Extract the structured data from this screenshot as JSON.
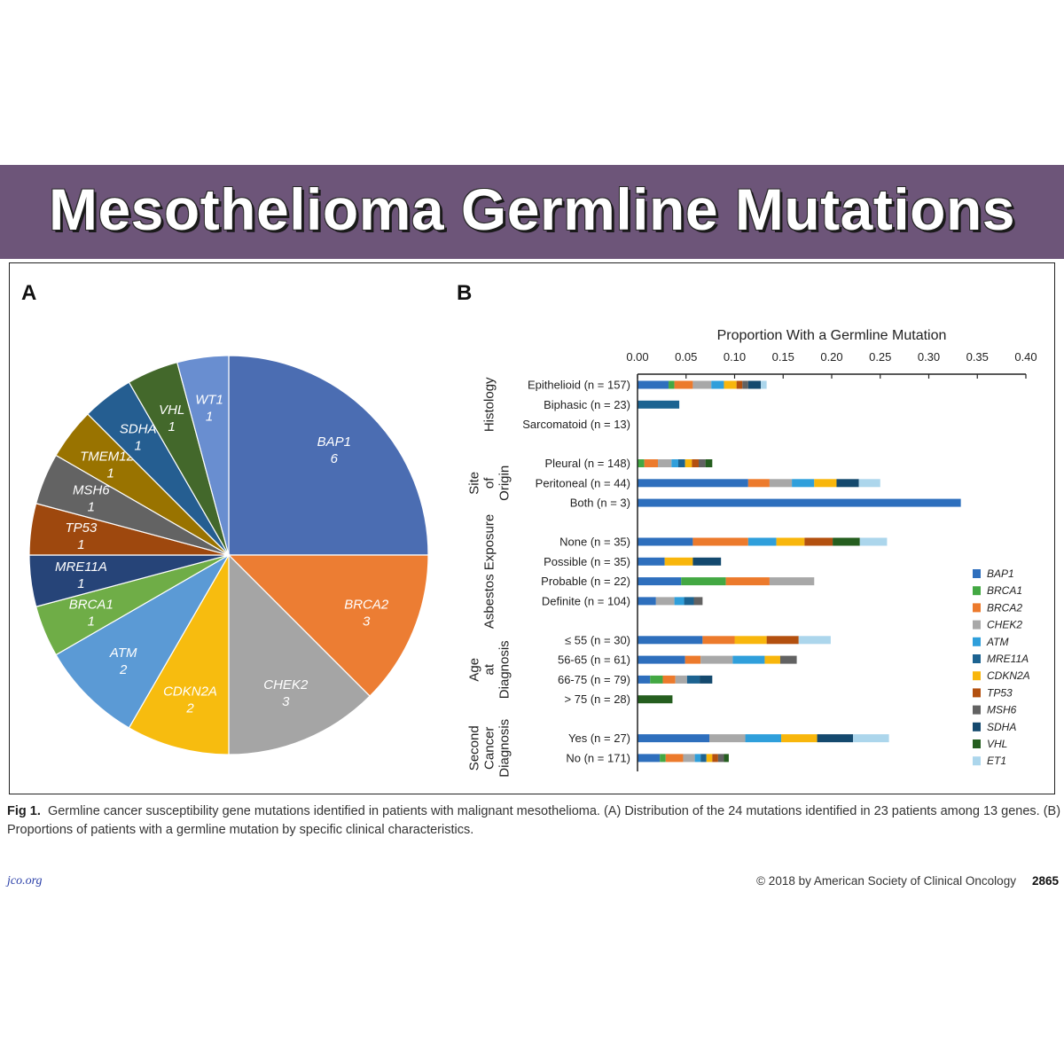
{
  "banner": {
    "title": "Mesothelioma Germline Mutations"
  },
  "panels": {
    "a": "A",
    "b": "B"
  },
  "caption": {
    "label": "Fig 1.",
    "text": "Germline cancer susceptibility gene mutations identified in patients with malignant mesothelioma. (A) Distribution of the 24 mutations identified in 23 patients among 13 genes. (B) Proportions of patients with a germline mutation by specific clinical characteristics."
  },
  "footer": {
    "site": "jco.org",
    "copyright": "© 2018 by American Society of Clinical Oncology",
    "page": "2865"
  },
  "colors": {
    "BAP1": "#2e6fbd",
    "BRCA1": "#43a843",
    "BRCA2": "#ec7a2c",
    "CHEK2": "#a8a8a8",
    "ATM": "#2f9fdb",
    "MRE11A": "#1c6391",
    "CDKN2A": "#f8b60c",
    "TP53": "#b3500f",
    "MSH6": "#626262",
    "SDHA": "#14496e",
    "VHL": "#255e1f",
    "ET1": "#acd6ec"
  },
  "chart_data": [
    {
      "type": "pie",
      "slices": [
        {
          "label": "BAP1",
          "value": 6,
          "color": "#4b6db2"
        },
        {
          "label": "BRCA2",
          "value": 3,
          "color": "#ec7d33"
        },
        {
          "label": "CHEK2",
          "value": 3,
          "color": "#a5a5a5"
        },
        {
          "label": "CDKN2A",
          "value": 2,
          "color": "#f7bc0f"
        },
        {
          "label": "ATM",
          "value": 2,
          "color": "#5b9ad5"
        },
        {
          "label": "BRCA1",
          "value": 1,
          "color": "#6fad47"
        },
        {
          "label": "MRE11A",
          "value": 1,
          "color": "#264478"
        },
        {
          "label": "TP53",
          "value": 1,
          "color": "#9e480e"
        },
        {
          "label": "MSH6",
          "value": 1,
          "color": "#636363"
        },
        {
          "label": "TMEM127",
          "value": 1,
          "color": "#997300"
        },
        {
          "label": "SDHA",
          "value": 1,
          "color": "#255e91"
        },
        {
          "label": "VHL",
          "value": 1,
          "color": "#43682b"
        },
        {
          "label": "WT1",
          "value": 1,
          "color": "#698ed0"
        }
      ]
    },
    {
      "type": "bar",
      "stacked": true,
      "orientation": "horizontal",
      "xlabel": "Proportion With a Germline Mutation",
      "xlim": [
        0,
        0.4
      ],
      "xticks": [
        "0.00",
        "0.05",
        "0.10",
        "0.15",
        "0.20",
        "0.25",
        "0.30",
        "0.35",
        "0.40"
      ],
      "genes": [
        "BAP1",
        "BRCA1",
        "BRCA2",
        "CHEK2",
        "ATM",
        "MRE11A",
        "CDKN2A",
        "TP53",
        "MSH6",
        "SDHA",
        "VHL",
        "ET1"
      ],
      "groups": [
        {
          "label": "Histology",
          "rows": [
            {
              "label": "Epithelioid (n = 157)",
              "segments": [
                [
                  "BAP1",
                  0.032
                ],
                [
                  "BRCA1",
                  0.006
                ],
                [
                  "BRCA2",
                  0.019
                ],
                [
                  "CHEK2",
                  0.019
                ],
                [
                  "ATM",
                  0.013
                ],
                [
                  "CDKN2A",
                  0.013
                ],
                [
                  "TP53",
                  0.006
                ],
                [
                  "MSH6",
                  0.006
                ],
                [
                  "SDHA",
                  0.013
                ],
                [
                  "ET1",
                  0.006
                ]
              ]
            },
            {
              "label": "Biphasic (n = 23)",
              "segments": [
                [
                  "MRE11A",
                  0.043
                ]
              ]
            },
            {
              "label": "Sarcomatoid (n = 13)",
              "segments": []
            }
          ]
        },
        {
          "label": "Site of Origin",
          "rows": [
            {
              "label": "Pleural (n = 148)",
              "segments": [
                [
                  "BRCA1",
                  0.007
                ],
                [
                  "BRCA2",
                  0.014
                ],
                [
                  "CHEK2",
                  0.014
                ],
                [
                  "ATM",
                  0.007
                ],
                [
                  "MRE11A",
                  0.007
                ],
                [
                  "CDKN2A",
                  0.007
                ],
                [
                  "TP53",
                  0.007
                ],
                [
                  "MSH6",
                  0.007
                ],
                [
                  "VHL",
                  0.007
                ]
              ]
            },
            {
              "label": "Peritoneal (n = 44)",
              "segments": [
                [
                  "BAP1",
                  0.114
                ],
                [
                  "BRCA2",
                  0.022
                ],
                [
                  "CHEK2",
                  0.023
                ],
                [
                  "ATM",
                  0.023
                ],
                [
                  "CDKN2A",
                  0.023
                ],
                [
                  "SDHA",
                  0.023
                ],
                [
                  "ET1",
                  0.022
                ]
              ]
            },
            {
              "label": "Both (n = 3)",
              "segments": [
                [
                  "BAP1",
                  0.333
                ]
              ]
            }
          ]
        },
        {
          "label": "Asbestos Exposure",
          "rows": [
            {
              "label": "None (n = 35)",
              "segments": [
                [
                  "BAP1",
                  0.057
                ],
                [
                  "BRCA2",
                  0.057
                ],
                [
                  "ATM",
                  0.029
                ],
                [
                  "CDKN2A",
                  0.029
                ],
                [
                  "TP53",
                  0.029
                ],
                [
                  "VHL",
                  0.028
                ],
                [
                  "ET1",
                  0.028
                ]
              ]
            },
            {
              "label": "Possible (n = 35)",
              "segments": [
                [
                  "BAP1",
                  0.028
                ],
                [
                  "CDKN2A",
                  0.029
                ],
                [
                  "SDHA",
                  0.029
                ]
              ]
            },
            {
              "label": "Probable (n = 22)",
              "segments": [
                [
                  "BAP1",
                  0.045
                ],
                [
                  "BRCA1",
                  0.046
                ],
                [
                  "BRCA2",
                  0.045
                ],
                [
                  "CHEK2",
                  0.046
                ]
              ]
            },
            {
              "label": "Definite (n = 104)",
              "segments": [
                [
                  "BAP1",
                  0.019
                ],
                [
                  "CHEK2",
                  0.019
                ],
                [
                  "ATM",
                  0.01
                ],
                [
                  "MRE11A",
                  0.01
                ],
                [
                  "MSH6",
                  0.009
                ]
              ]
            }
          ]
        },
        {
          "label": "Age at Diagnosis",
          "rows": [
            {
              "label": "≤ 55 (n = 30)",
              "segments": [
                [
                  "BAP1",
                  0.067
                ],
                [
                  "BRCA2",
                  0.033
                ],
                [
                  "CDKN2A",
                  0.033
                ],
                [
                  "TP53",
                  0.033
                ],
                [
                  "ET1",
                  0.033
                ]
              ]
            },
            {
              "label": "56-65 (n = 61)",
              "segments": [
                [
                  "BAP1",
                  0.049
                ],
                [
                  "BRCA2",
                  0.016
                ],
                [
                  "CHEK2",
                  0.033
                ],
                [
                  "ATM",
                  0.033
                ],
                [
                  "CDKN2A",
                  0.016
                ],
                [
                  "MSH6",
                  0.017
                ]
              ]
            },
            {
              "label": "66-75 (n = 79)",
              "segments": [
                [
                  "BAP1",
                  0.013
                ],
                [
                  "BRCA1",
                  0.013
                ],
                [
                  "BRCA2",
                  0.013
                ],
                [
                  "CHEK2",
                  0.012
                ],
                [
                  "MRE11A",
                  0.013
                ],
                [
                  "SDHA",
                  0.013
                ]
              ]
            },
            {
              "label": "> 75 (n = 28)",
              "segments": [
                [
                  "VHL",
                  0.036
                ]
              ]
            }
          ]
        },
        {
          "label": "Second Cancer Diagnosis",
          "rows": [
            {
              "label": "Yes (n = 27)",
              "segments": [
                [
                  "BAP1",
                  0.074
                ],
                [
                  "CHEK2",
                  0.037
                ],
                [
                  "ATM",
                  0.037
                ],
                [
                  "CDKN2A",
                  0.037
                ],
                [
                  "SDHA",
                  0.037
                ],
                [
                  "ET1",
                  0.037
                ]
              ]
            },
            {
              "label": "No (n = 171)",
              "segments": [
                [
                  "BAP1",
                  0.023
                ],
                [
                  "BRCA1",
                  0.006
                ],
                [
                  "BRCA2",
                  0.018
                ],
                [
                  "CHEK2",
                  0.012
                ],
                [
                  "ATM",
                  0.006
                ],
                [
                  "MRE11A",
                  0.006
                ],
                [
                  "CDKN2A",
                  0.006
                ],
                [
                  "TP53",
                  0.006
                ],
                [
                  "MSH6",
                  0.006
                ],
                [
                  "VHL",
                  0.005
                ]
              ]
            }
          ]
        }
      ]
    }
  ]
}
